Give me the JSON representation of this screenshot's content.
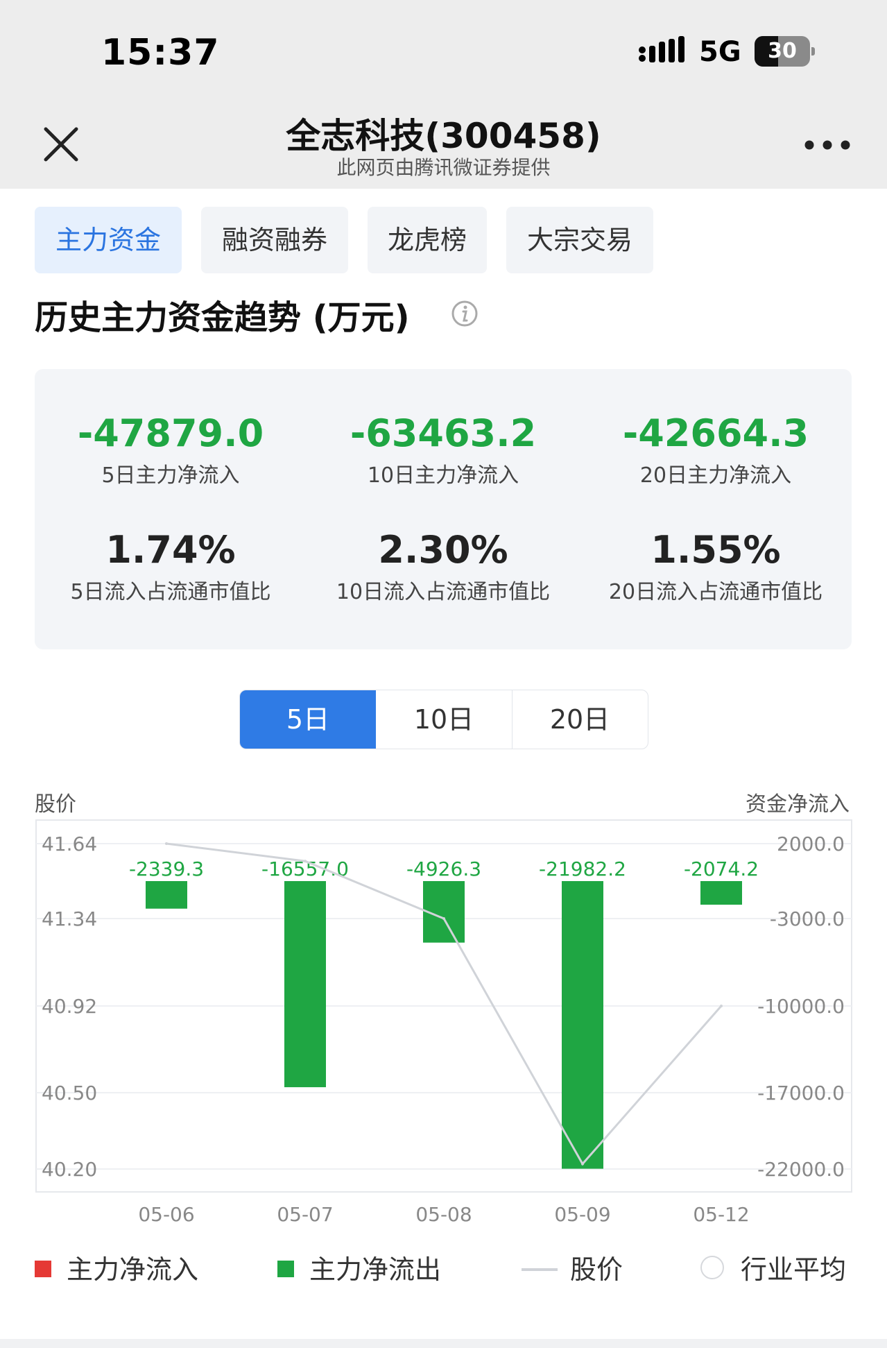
{
  "status_bar": {
    "time": "15:37",
    "network": "5G",
    "battery": "30"
  },
  "navbar": {
    "title": "全志科技(300458)",
    "subtitle": "此网页由腾讯微证券提供",
    "close_icon": "close-icon",
    "more_icon": "more-icon"
  },
  "tabs": [
    {
      "label": "主力资金",
      "active": true
    },
    {
      "label": "融资融券",
      "active": false
    },
    {
      "label": "龙虎榜",
      "active": false
    },
    {
      "label": "大宗交易",
      "active": false
    }
  ],
  "section": {
    "title": "历史主力资金趋势 (万元)",
    "info_icon": "info-icon"
  },
  "stats": [
    {
      "value": "-47879.0",
      "label": "5日主力净流入",
      "tone": "neg"
    },
    {
      "value": "-63463.2",
      "label": "10日主力净流入",
      "tone": "neg"
    },
    {
      "value": "-42664.3",
      "label": "20日主力净流入",
      "tone": "neg"
    },
    {
      "value": "1.74%",
      "label": "5日流入占流通市值比",
      "tone": "neu"
    },
    {
      "value": "2.30%",
      "label": "10日流入占流通市值比",
      "tone": "neu"
    },
    {
      "value": "1.55%",
      "label": "20日流入占流通市值比",
      "tone": "neu"
    }
  ],
  "period_selector": {
    "options": [
      "5日",
      "10日",
      "20日"
    ],
    "selected": "5日"
  },
  "chart_axis_titles": {
    "left": "股价",
    "right": "资金净流入"
  },
  "legend": [
    {
      "label": "主力净流入",
      "color": "#e53935",
      "kind": "square"
    },
    {
      "label": "主力净流出",
      "color": "#1fa643",
      "kind": "square"
    },
    {
      "label": "股价",
      "color": "#d0d3d8",
      "kind": "line"
    },
    {
      "label": "行业平均",
      "color": "#d6d8dc",
      "kind": "circle"
    }
  ],
  "chart_data": {
    "type": "bar",
    "categories": [
      "05-06",
      "05-07",
      "05-08",
      "05-09",
      "05-12"
    ],
    "series": [
      {
        "name": "主力净流出",
        "kind": "bar",
        "axis": "right",
        "color": "#1fa643",
        "values": [
          -2339.3,
          -16557.0,
          -4926.3,
          -21982.2,
          -2074.2
        ]
      },
      {
        "name": "股价",
        "kind": "line",
        "axis": "left",
        "color": "#d0d3d8",
        "values": [
          41.64,
          41.57,
          41.34,
          40.22,
          40.92
        ]
      }
    ],
    "data_labels": [
      "-2339.3",
      "-16557.0",
      "-4926.3",
      "-21982.2",
      "-2074.2"
    ],
    "left_axis": {
      "label": "股价",
      "ticks": [
        "41.64",
        "41.34",
        "40.92",
        "40.50",
        "40.20"
      ]
    },
    "right_axis": {
      "label": "资金净流入",
      "ticks": [
        "2000.0",
        "-3000.0",
        "-10000.0",
        "-17000.0",
        "-22000.0"
      ]
    },
    "colors": {
      "inflow": "#e53935",
      "outflow": "#1fa643",
      "price": "#d0d3d8"
    }
  }
}
